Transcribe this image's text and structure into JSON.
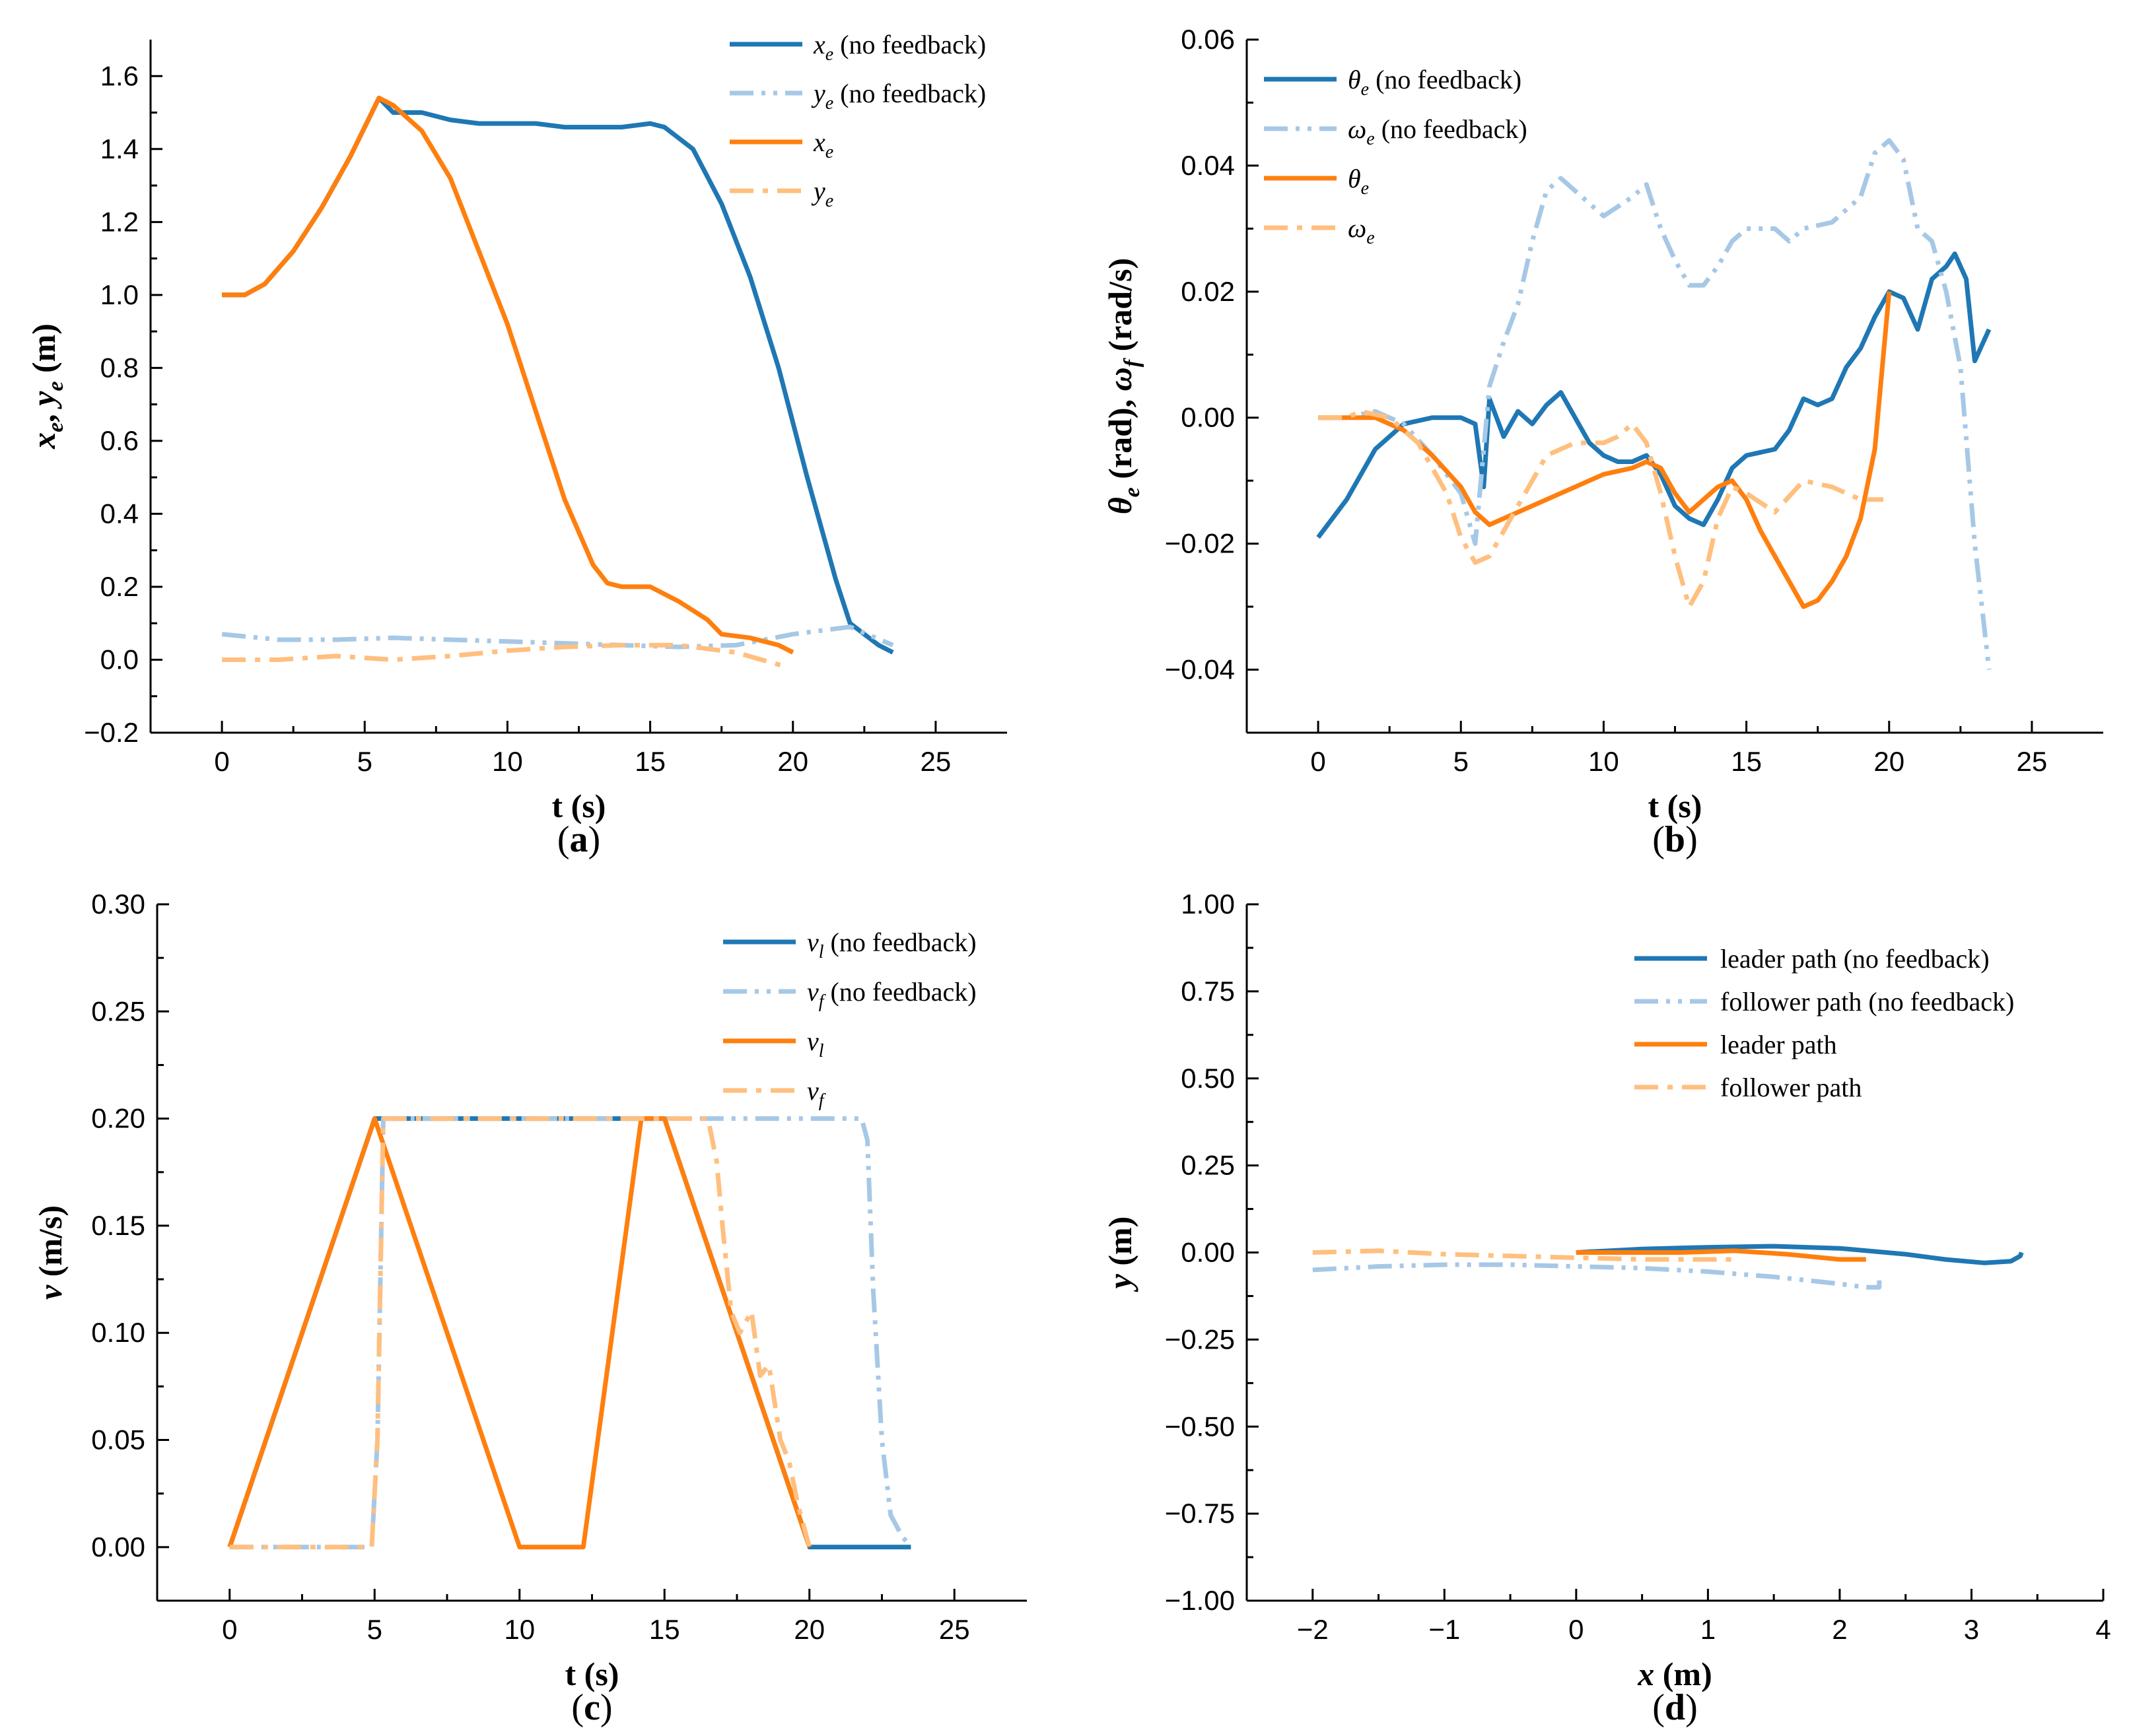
{
  "colors": {
    "dark_blue": "#1f77b4",
    "light_blue": "#a6c8e6",
    "orange": "#ff7f0e",
    "light_orange": "#ffbf7f"
  },
  "chart_data": [
    {
      "id": "a",
      "type": "line",
      "panel_label": {
        "open": "(",
        "letter": "a",
        "close": ")"
      },
      "xlabel": "t (s)",
      "ylabel": "x_e, y_e (m)",
      "ylabel_parts": {
        "x": "x",
        "e1": "e",
        "sep": ", ",
        "y": "y",
        "e2": "e",
        "unit": " (m)"
      },
      "xlim": [
        -2.5,
        27.5
      ],
      "ylim": [
        -0.2,
        1.7
      ],
      "xticks": [
        0,
        5,
        10,
        15,
        20,
        25
      ],
      "xticklabels": [
        "0",
        "5",
        "10",
        "15",
        "20",
        "25"
      ],
      "yticks": [
        -0.2,
        0.0,
        0.2,
        0.4,
        0.6,
        0.8,
        1.0,
        1.2,
        1.4,
        1.6
      ],
      "yticklabels": [
        "−0.2",
        "0.0",
        "0.2",
        "0.4",
        "0.6",
        "0.8",
        "1.0",
        "1.2",
        "1.4",
        "1.6"
      ],
      "legend_position": "top-right",
      "series": [
        {
          "name": "x_e (no feedback)",
          "legend": {
            "sym": "x",
            "sub": "e",
            "rest": " (no feedback)"
          },
          "color": "#1f77b4",
          "style": "solid",
          "x": [
            0,
            0.8,
            1.5,
            2.5,
            3.5,
            4.5,
            5.5,
            6.0,
            7.0,
            8.0,
            9.0,
            10.0,
            11.0,
            12.0,
            13.0,
            14.0,
            15.0,
            15.5,
            16.5,
            17.5,
            18.5,
            19.5,
            20.5,
            21.5,
            22.0,
            22.5,
            23.0,
            23.5
          ],
          "y": [
            1.0,
            1.0,
            1.03,
            1.12,
            1.24,
            1.38,
            1.54,
            1.5,
            1.5,
            1.48,
            1.47,
            1.47,
            1.47,
            1.46,
            1.46,
            1.46,
            1.47,
            1.46,
            1.4,
            1.25,
            1.05,
            0.8,
            0.5,
            0.22,
            0.1,
            0.07,
            0.04,
            0.02
          ]
        },
        {
          "name": "y_e (no feedback)",
          "legend": {
            "sym": "y",
            "sub": "e",
            "rest": " (no feedback)"
          },
          "color": "#a6c8e6",
          "style": "dashdotdot",
          "x": [
            0,
            2,
            4,
            6,
            8,
            10,
            12,
            14,
            16,
            18,
            20,
            22,
            23.5
          ],
          "y": [
            0.07,
            0.055,
            0.055,
            0.06,
            0.055,
            0.05,
            0.045,
            0.04,
            0.035,
            0.04,
            0.07,
            0.09,
            0.04
          ]
        },
        {
          "name": "x_e",
          "legend": {
            "sym": "x",
            "sub": "e",
            "rest": ""
          },
          "color": "#ff7f0e",
          "style": "solid",
          "x": [
            0,
            0.8,
            1.5,
            2.5,
            3.5,
            4.5,
            5.5,
            6.0,
            7.0,
            8.0,
            9.0,
            10.0,
            11.0,
            12.0,
            13.0,
            13.5,
            14.0,
            15.0,
            16.0,
            17.0,
            17.5,
            18.5,
            19.5,
            20.0
          ],
          "y": [
            1.0,
            1.0,
            1.03,
            1.12,
            1.24,
            1.38,
            1.54,
            1.52,
            1.45,
            1.32,
            1.12,
            0.92,
            0.68,
            0.44,
            0.26,
            0.21,
            0.2,
            0.2,
            0.16,
            0.11,
            0.07,
            0.06,
            0.04,
            0.02
          ]
        },
        {
          "name": "y_e",
          "legend": {
            "sym": "y",
            "sub": "e",
            "rest": ""
          },
          "color": "#ffbf7f",
          "style": "dashdot",
          "x": [
            0,
            2,
            4,
            6,
            8,
            10,
            12,
            14,
            16,
            18,
            19.8
          ],
          "y": [
            0.0,
            0.0,
            0.01,
            0.0,
            0.01,
            0.025,
            0.035,
            0.04,
            0.04,
            0.02,
            -0.02
          ]
        }
      ]
    },
    {
      "id": "b",
      "type": "line",
      "panel_label": {
        "open": "(",
        "letter": "b",
        "close": ")"
      },
      "xlabel": "t (s)",
      "ylabel": "θe (rad), ωf (rad/s)",
      "ylabel_parts": {
        "th": "θ",
        "e": "e",
        "mid": " (rad), ",
        "om": "ω",
        "f": "f",
        "unit": " (rad/s)"
      },
      "xlim": [
        -2.5,
        27.5
      ],
      "ylim": [
        -0.05,
        0.06
      ],
      "xticks": [
        0,
        5,
        10,
        15,
        20,
        25
      ],
      "xticklabels": [
        "0",
        "5",
        "10",
        "15",
        "20",
        "25"
      ],
      "yticks": [
        -0.04,
        -0.02,
        0.0,
        0.02,
        0.04,
        0.06
      ],
      "yticklabels": [
        "−0.04",
        "−0.02",
        "0.00",
        "0.02",
        "0.04",
        "0.06"
      ],
      "legend_position": "top-left",
      "series": [
        {
          "name": "θe (no feedback)",
          "legend": {
            "sym": "θ",
            "sub": "e",
            "rest": " (no feedback)"
          },
          "color": "#1f77b4",
          "style": "solid",
          "x": [
            0,
            1,
            2,
            3,
            4,
            5,
            5.5,
            5.8,
            6.0,
            6.5,
            7,
            7.5,
            8,
            8.5,
            9,
            9.5,
            10,
            10.5,
            11,
            11.5,
            12,
            12.5,
            13,
            13.5,
            14,
            14.5,
            15,
            16,
            16.5,
            17,
            17.5,
            18,
            18.5,
            19,
            19.5,
            20,
            20.5,
            21,
            21.5,
            22,
            22.3,
            22.7,
            23,
            23.5
          ],
          "y": [
            -0.019,
            -0.013,
            -0.005,
            -0.001,
            0.0,
            0.0,
            -0.001,
            -0.011,
            0.003,
            -0.003,
            0.001,
            -0.001,
            0.002,
            0.004,
            0.0,
            -0.004,
            -0.006,
            -0.007,
            -0.007,
            -0.006,
            -0.009,
            -0.014,
            -0.016,
            -0.017,
            -0.013,
            -0.008,
            -0.006,
            -0.005,
            -0.002,
            0.003,
            0.002,
            0.003,
            0.008,
            0.011,
            0.016,
            0.02,
            0.019,
            0.014,
            0.022,
            0.024,
            0.026,
            0.022,
            0.009,
            0.014
          ]
        },
        {
          "name": "ωe (no feedback)",
          "legend": {
            "sym": "ω",
            "sub": "e",
            "rest": " (no feedback)"
          },
          "color": "#a6c8e6",
          "style": "dashdotdot",
          "x": [
            0,
            1,
            2,
            3,
            4,
            5,
            5.5,
            6,
            6.5,
            7,
            7.5,
            8,
            8.5,
            9,
            9.5,
            10,
            11,
            11.5,
            12,
            12.5,
            13,
            13.5,
            14,
            14.5,
            15,
            16,
            16.5,
            17,
            18,
            18.5,
            19,
            19.5,
            20,
            20.5,
            21,
            21.5,
            22,
            22.5,
            23,
            23.5
          ],
          "y": [
            0.0,
            0.0,
            0.001,
            -0.001,
            -0.006,
            -0.012,
            -0.02,
            0.005,
            0.012,
            0.018,
            0.028,
            0.036,
            0.038,
            0.036,
            0.034,
            0.032,
            0.035,
            0.037,
            0.03,
            0.025,
            0.021,
            0.021,
            0.024,
            0.028,
            0.03,
            0.03,
            0.028,
            0.03,
            0.031,
            0.033,
            0.035,
            0.042,
            0.044,
            0.041,
            0.03,
            0.028,
            0.02,
            0.008,
            -0.02,
            -0.04
          ]
        },
        {
          "name": "θe",
          "legend": {
            "sym": "θ",
            "sub": "e",
            "rest": ""
          },
          "color": "#ff7f0e",
          "style": "solid",
          "x": [
            0,
            1,
            2,
            3,
            4,
            5,
            5.5,
            6,
            7,
            8,
            9,
            10,
            11,
            11.5,
            12,
            12.5,
            13,
            13.5,
            14,
            14.5,
            15,
            15.5,
            16,
            16.5,
            17,
            17.5,
            18,
            18.5,
            19,
            19.5,
            20
          ],
          "y": [
            0.0,
            0.0,
            0.0,
            -0.002,
            -0.006,
            -0.011,
            -0.015,
            -0.017,
            -0.015,
            -0.013,
            -0.011,
            -0.009,
            -0.008,
            -0.007,
            -0.008,
            -0.012,
            -0.015,
            -0.013,
            -0.011,
            -0.01,
            -0.013,
            -0.018,
            -0.022,
            -0.026,
            -0.03,
            -0.029,
            -0.026,
            -0.022,
            -0.016,
            -0.005,
            0.02
          ]
        },
        {
          "name": "ωe",
          "legend": {
            "sym": "ω",
            "sub": "e",
            "rest": ""
          },
          "color": "#ffbf7f",
          "style": "dashdot",
          "x": [
            0,
            1,
            1.5,
            2.5,
            3.5,
            4.5,
            5,
            5.5,
            6,
            6.5,
            7,
            8,
            9,
            10,
            10.5,
            11,
            11.5,
            12,
            12.5,
            13,
            13.5,
            14,
            14.5,
            15,
            16,
            17,
            18,
            19,
            19.8
          ],
          "y": [
            0.0,
            0.0,
            0.001,
            0.0,
            -0.004,
            -0.012,
            -0.019,
            -0.023,
            -0.022,
            -0.018,
            -0.014,
            -0.006,
            -0.004,
            -0.004,
            -0.003,
            -0.001,
            -0.004,
            -0.012,
            -0.022,
            -0.03,
            -0.026,
            -0.016,
            -0.011,
            -0.012,
            -0.015,
            -0.01,
            -0.011,
            -0.013,
            -0.013
          ]
        }
      ]
    },
    {
      "id": "c",
      "type": "line",
      "panel_label": {
        "open": "(",
        "letter": "c",
        "close": ")"
      },
      "xlabel": "t (s)",
      "ylabel": "v (m/s)",
      "ylabel_parts": {
        "v": "v",
        "unit": " (m/s)"
      },
      "xlim": [
        -2.5,
        27.5
      ],
      "ylim": [
        -0.025,
        0.3
      ],
      "xticks": [
        0,
        5,
        10,
        15,
        20,
        25
      ],
      "xticklabels": [
        "0",
        "5",
        "10",
        "15",
        "20",
        "25"
      ],
      "yticks": [
        0.0,
        0.05,
        0.1,
        0.15,
        0.2,
        0.25,
        0.3
      ],
      "yticklabels": [
        "0.00",
        "0.05",
        "0.10",
        "0.15",
        "0.20",
        "0.25",
        "0.30"
      ],
      "legend_position": "top-right",
      "series": [
        {
          "name": "vl (no feedback)",
          "legend": {
            "sym": "v",
            "sub": "l",
            "rest": " (no feedback)"
          },
          "color": "#1f77b4",
          "style": "solid",
          "x": [
            0,
            5,
            10,
            12,
            14,
            15,
            20,
            23.5
          ],
          "y": [
            0.0,
            0.2,
            0.2,
            0.2,
            0.2,
            0.2,
            0.0,
            0.0
          ]
        },
        {
          "name": "vf (no feedback)",
          "legend": {
            "sym": "v",
            "sub": "f",
            "rest": " (no feedback)"
          },
          "color": "#a6c8e6",
          "style": "dashdotdot",
          "x": [
            0,
            4.9,
            5.1,
            5.3,
            10,
            15,
            20,
            21.8,
            22.0,
            22.2,
            22.5,
            22.8,
            23.2,
            23.5
          ],
          "y": [
            0.0,
            0.0,
            0.05,
            0.2,
            0.2,
            0.2,
            0.2,
            0.2,
            0.19,
            0.12,
            0.05,
            0.015,
            0.005,
            0.0
          ]
        },
        {
          "name": "vl",
          "legend": {
            "sym": "v",
            "sub": "l",
            "rest": ""
          },
          "color": "#ff7f0e",
          "style": "solid",
          "x": [
            0,
            5,
            10,
            12.2,
            14.2,
            15,
            20
          ],
          "y": [
            0.0,
            0.2,
            0.0,
            0.0,
            0.2,
            0.2,
            0.0
          ]
        },
        {
          "name": "vf",
          "legend": {
            "sym": "v",
            "sub": "f",
            "rest": ""
          },
          "color": "#ffbf7f",
          "style": "dashdot",
          "x": [
            0,
            4.9,
            5.1,
            5.3,
            10,
            16.5,
            16.8,
            17.0,
            17.3,
            17.6,
            18.0,
            18.3,
            18.6,
            19.0,
            19.3,
            19.6,
            20.0
          ],
          "y": [
            0.0,
            0.0,
            0.05,
            0.2,
            0.2,
            0.2,
            0.18,
            0.15,
            0.11,
            0.1,
            0.11,
            0.08,
            0.085,
            0.05,
            0.04,
            0.02,
            0.0
          ]
        }
      ]
    },
    {
      "id": "d",
      "type": "line",
      "panel_label": {
        "open": "(",
        "letter": "d",
        "close": ")"
      },
      "xlabel": "x (m)",
      "xlabel_parts": {
        "x": "x",
        "unit": " (m)"
      },
      "ylabel": "y (m)",
      "ylabel_parts": {
        "y": "y",
        "unit": " (m)"
      },
      "xlim": [
        -2.5,
        4.0
      ],
      "ylim": [
        -1.0,
        1.0
      ],
      "xticks": [
        -2,
        -1,
        0,
        1,
        2,
        3,
        4
      ],
      "xticklabels": [
        "−2",
        "−1",
        "0",
        "1",
        "2",
        "3",
        "4"
      ],
      "yticks": [
        -1.0,
        -0.75,
        -0.5,
        -0.25,
        0.0,
        0.25,
        0.5,
        0.75,
        1.0
      ],
      "yticklabels": [
        "−1.00",
        "−0.75",
        "−0.50",
        "−0.25",
        "0.00",
        "0.25",
        "0.50",
        "0.75",
        "1.00"
      ],
      "legend_position": "top-right",
      "series": [
        {
          "name": "leader path (no feedback)",
          "legend": {
            "sym": "",
            "sub": "",
            "rest": "leader path (no feedback)"
          },
          "color": "#1f77b4",
          "style": "solid",
          "x": [
            0,
            0.5,
            1.0,
            1.5,
            2.0,
            2.5,
            2.8,
            3.1,
            3.3,
            3.37,
            3.38
          ],
          "y": [
            0.0,
            0.01,
            0.015,
            0.018,
            0.012,
            -0.005,
            -0.02,
            -0.03,
            -0.025,
            -0.01,
            0.0
          ]
        },
        {
          "name": "follower path (no feedback)",
          "legend": {
            "sym": "",
            "sub": "",
            "rest": "follower path (no feedback)"
          },
          "color": "#a6c8e6",
          "style": "dashdotdot",
          "x": [
            -2.0,
            -1.5,
            -1.0,
            -0.5,
            0.0,
            0.5,
            1.0,
            1.5,
            2.0,
            2.2,
            2.3,
            2.3
          ],
          "y": [
            -0.05,
            -0.04,
            -0.035,
            -0.035,
            -0.04,
            -0.045,
            -0.055,
            -0.07,
            -0.09,
            -0.1,
            -0.1,
            -0.08
          ]
        },
        {
          "name": "leader path",
          "legend": {
            "sym": "",
            "sub": "",
            "rest": "leader path"
          },
          "color": "#ff7f0e",
          "style": "solid",
          "x": [
            0,
            0.4,
            0.8,
            1.2,
            1.6,
            2.0,
            2.2
          ],
          "y": [
            0.0,
            0.0,
            0.0,
            0.005,
            -0.005,
            -0.02,
            -0.02
          ]
        },
        {
          "name": "follower path",
          "legend": {
            "sym": "",
            "sub": "",
            "rest": "follower path"
          },
          "color": "#ffbf7f",
          "style": "dashdot",
          "x": [
            -2.0,
            -1.5,
            -1.0,
            -0.5,
            0.0,
            0.5,
            1.0,
            1.2
          ],
          "y": [
            0.0,
            0.005,
            -0.005,
            -0.01,
            -0.015,
            -0.02,
            -0.02,
            -0.02
          ]
        }
      ]
    }
  ]
}
